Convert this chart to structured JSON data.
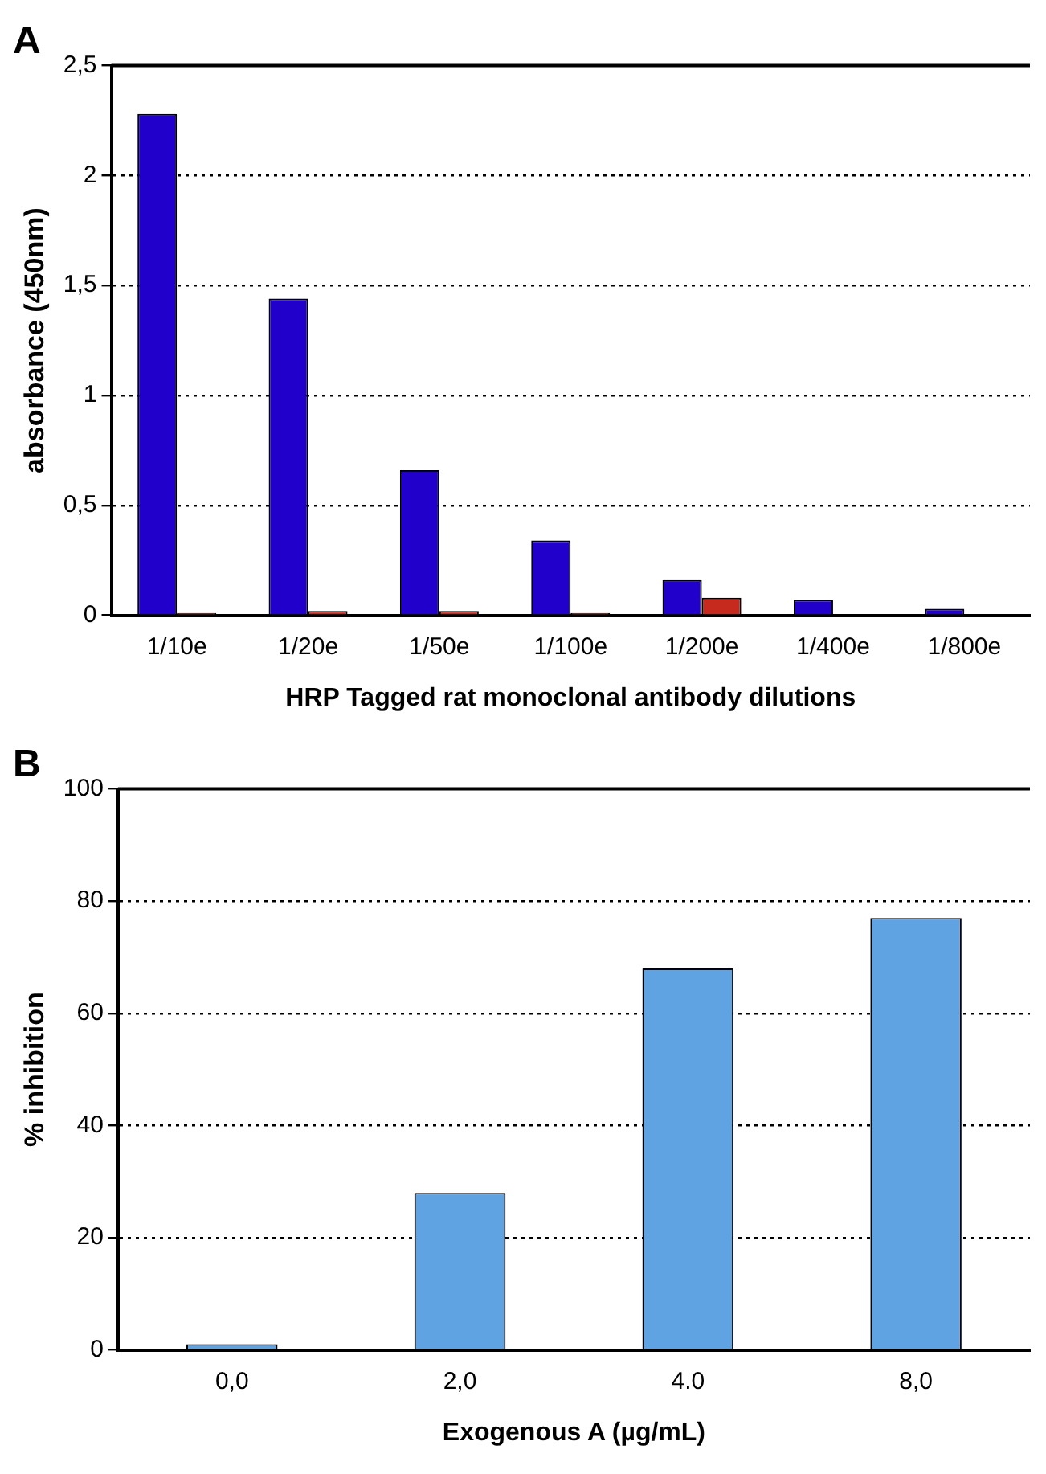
{
  "chart_data": [
    {
      "type": "bar",
      "title": "A",
      "xlabel": "HRP Tagged rat monoclonal antibody dilutions",
      "ylabel": "absorbance (450nm)",
      "categories": [
        "1/10e",
        "1/20e",
        "1/50e",
        "1/100e",
        "1/200e",
        "1/400e",
        "1/800e"
      ],
      "series": [
        {
          "color": "#2200cc",
          "values": [
            2.28,
            1.44,
            0.66,
            0.34,
            0.16,
            0.07,
            0.03
          ]
        },
        {
          "color": "#c62a1e",
          "values": [
            0.01,
            0.02,
            0.02,
            0.01,
            0.08,
            null,
            null
          ]
        }
      ],
      "ylim": [
        0,
        2.5
      ],
      "yticks": [
        0,
        {
          "value": 0.5,
          "label": "0,5"
        },
        1,
        {
          "value": 1.5,
          "label": "1,5"
        },
        2,
        {
          "value": 2.5,
          "label": "2,5"
        }
      ],
      "grid": "y",
      "legend": false
    },
    {
      "type": "bar",
      "title": "B",
      "xlabel": "Exogenous A (µg/mL)",
      "ylabel": "% inhibition",
      "categories": [
        "0,0",
        "2,0",
        "4.0",
        "8,0"
      ],
      "series": [
        {
          "color": "#5fa3e3",
          "values": [
            1,
            28,
            68,
            77
          ]
        }
      ],
      "ylim": [
        0,
        100
      ],
      "yticks": [
        0,
        20,
        40,
        60,
        80,
        100
      ],
      "grid": "y",
      "legend": false
    }
  ]
}
